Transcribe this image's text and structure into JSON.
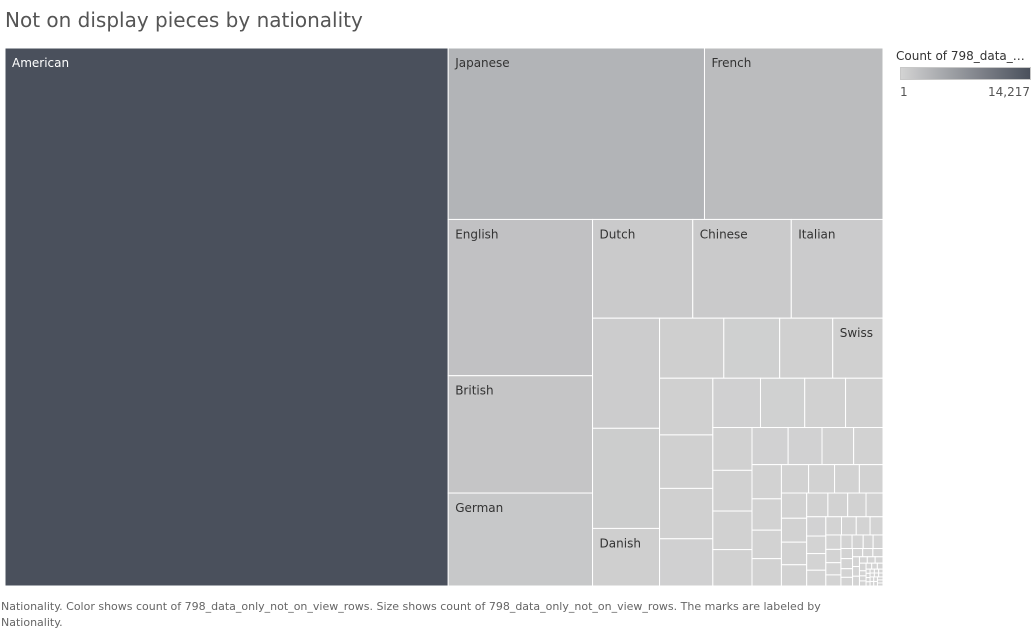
{
  "title": "Not on display pieces by nationality",
  "caption": "Nationality.  Color shows count of 798_data_only_not_on_view_rows.  Size shows count of 798_data_only_not_on_view_rows.  The marks are labeled by Nationality.",
  "legend": {
    "title": "Count of 798_data_onl..",
    "min_label": "1",
    "max_label": "14,217",
    "color_low": "#d3d3d3",
    "color_high": "#4a505c"
  },
  "chart_data": {
    "type": "treemap",
    "title": "Not on display pieces by nationality",
    "value_field": "Count of 798_data_only_not_on_view_rows",
    "color_range": [
      1,
      14217
    ],
    "labeled_items": [
      {
        "name": "American",
        "value": 14217
      },
      {
        "name": "Japanese",
        "value": 2620
      },
      {
        "name": "French",
        "value": 1825
      },
      {
        "name": "English",
        "value": 1345
      },
      {
        "name": "British",
        "value": 1010
      },
      {
        "name": "Dutch",
        "value": 590
      },
      {
        "name": "Chinese",
        "value": 580
      },
      {
        "name": "German",
        "value": 800
      },
      {
        "name": "Italian",
        "value": 540
      },
      {
        "name": "Danish",
        "value": 230
      },
      {
        "name": "Swiss",
        "value": 180
      }
    ],
    "unlabeled_counts": [
      440,
      400,
      230,
      200,
      190,
      180,
      170,
      160,
      150,
      140,
      130,
      120,
      110,
      100,
      95,
      90,
      85,
      80,
      75,
      70,
      65,
      60,
      55,
      50,
      48,
      46,
      44,
      42,
      40,
      38,
      36,
      34,
      32,
      30,
      28,
      26,
      24,
      22,
      20,
      19,
      18,
      17,
      16,
      15,
      14,
      13,
      12,
      11,
      10,
      9,
      9,
      8,
      8,
      7,
      7,
      6,
      6,
      5,
      5,
      5,
      4,
      4,
      4,
      3,
      3,
      3,
      3,
      2,
      2,
      2,
      2,
      2,
      2,
      1,
      1,
      1,
      1,
      1,
      1,
      1,
      1,
      1,
      1,
      1,
      1,
      1,
      1,
      1,
      1,
      1
    ]
  }
}
